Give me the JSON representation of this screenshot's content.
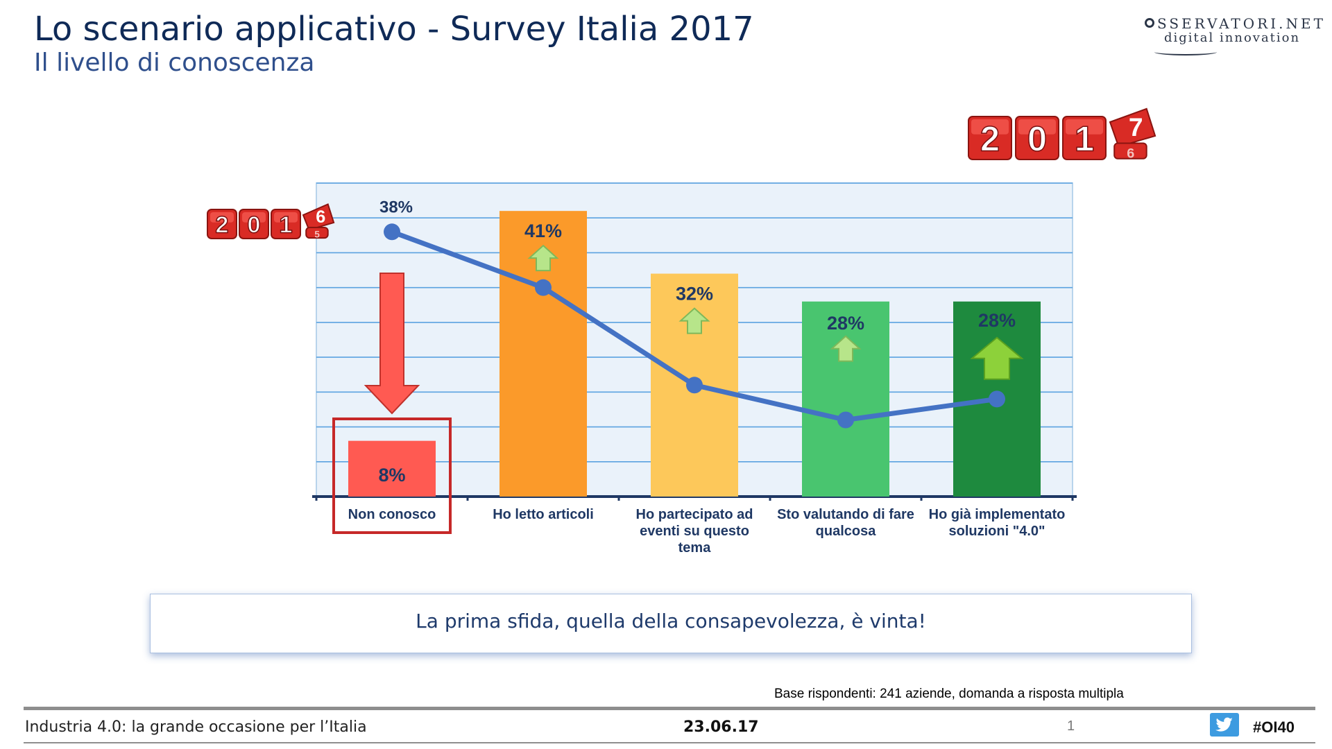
{
  "header": {
    "title": "Lo scenario applicativo - Survey Italia 2017",
    "subtitle": "Il livello di conoscenza"
  },
  "logo": {
    "line1": "SSERVATORI.NET",
    "line2": "digital innovation"
  },
  "badges": {
    "year_2017": {
      "digits": [
        "2",
        "0",
        "1"
      ],
      "flip_top": "7",
      "flip_bottom": "6"
    },
    "year_2016": {
      "digits": [
        "2",
        "0",
        "1"
      ],
      "flip_top": "6",
      "flip_bottom": "5"
    }
  },
  "chart_data": {
    "type": "bar",
    "categories": [
      "Non conosco",
      "Ho letto articoli",
      "Ho partecipato ad eventi su questo tema",
      "Sto valutando di fare qualcosa",
      "Ho già implementato soluzioni \"4.0\""
    ],
    "category_lines": [
      [
        "Non conosco"
      ],
      [
        "Ho letto articoli"
      ],
      [
        "Ho partecipato ad",
        "eventi su questo",
        "tema"
      ],
      [
        "Sto valutando di fare",
        "qualcosa"
      ],
      [
        "Ho già implementato",
        "soluzioni \"4.0\""
      ]
    ],
    "series": [
      {
        "name": "2017",
        "values": [
          8,
          41,
          32,
          28,
          28
        ],
        "labels": [
          "8%",
          "41%",
          "32%",
          "28%",
          "28%"
        ],
        "colors": [
          "#ff5a52",
          "#fb9a2a",
          "#fdc85a",
          "#49c56f",
          "#1e8a3e"
        ]
      },
      {
        "name": "2016",
        "values": [
          38,
          30,
          16,
          11,
          14
        ],
        "labels": [
          "38%",
          "",
          "",
          "",
          ""
        ],
        "color": "#4472c4"
      }
    ],
    "trend_arrows": [
      "down",
      "up",
      "up",
      "up",
      "up"
    ],
    "ylim": [
      0,
      45
    ],
    "grid": true,
    "highlight_category": "Non conosco"
  },
  "callout": {
    "text": "La prima sfida, quella della consapevolezza, è vinta!"
  },
  "note": {
    "text": "Base rispondenti: 241 aziende, domanda a risposta multipla"
  },
  "footer": {
    "left": "Industria 4.0: la grande occasione per l’Italia",
    "date": "23.06.17",
    "page": "1",
    "hashtag": "#OI40"
  }
}
